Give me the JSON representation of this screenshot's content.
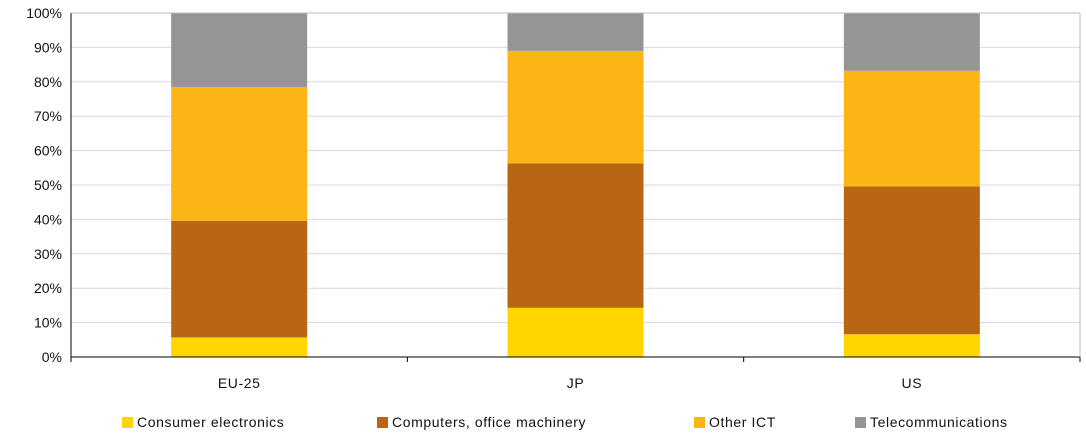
{
  "chart_data": {
    "type": "bar",
    "stacked": true,
    "percent_stacked": true,
    "categories": [
      "EU-25",
      "JP",
      "US"
    ],
    "series": [
      {
        "name": "Consumer electronics",
        "color": "#FFD600",
        "values": [
          5.7,
          14.3,
          6.6
        ]
      },
      {
        "name": "Computers, office machinery",
        "color": "#B86613",
        "values": [
          33.9,
          42.0,
          43.0
        ]
      },
      {
        "name": "Other ICT",
        "color": "#FBB615",
        "values": [
          38.9,
          32.7,
          33.6
        ]
      },
      {
        "name": "Telecommunications",
        "color": "#959597",
        "values": [
          21.5,
          11.0,
          16.8
        ]
      }
    ],
    "ylim": [
      0,
      100
    ],
    "yticks": [
      "0%",
      "10%",
      "20%",
      "30%",
      "40%",
      "50%",
      "60%",
      "70%",
      "80%",
      "90%",
      "100%"
    ],
    "grid": true,
    "legend_position": "bottom"
  }
}
